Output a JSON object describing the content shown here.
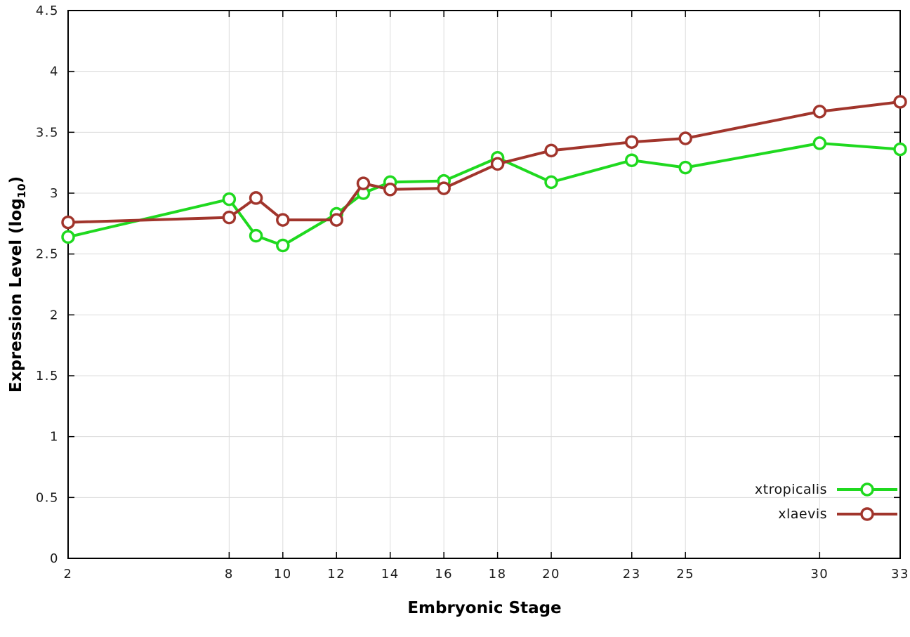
{
  "labels": {
    "xlabel": "Embryonic Stage",
    "ylabel_prefix": "Expression Level (log",
    "ylabel_sub": "10",
    "ylabel_suffix": ")"
  },
  "chart_data": {
    "type": "line",
    "x": [
      2,
      8,
      9,
      10,
      12,
      13,
      14,
      16,
      18,
      20,
      23,
      25,
      30,
      33
    ],
    "series": [
      {
        "name": "xtropicalis",
        "color": "#1fd91f",
        "values": [
          2.64,
          2.95,
          2.65,
          2.57,
          2.83,
          3.0,
          3.09,
          3.1,
          3.29,
          3.09,
          3.27,
          3.21,
          3.41,
          3.36
        ]
      },
      {
        "name": "xlaevis",
        "color": "#a1352c",
        "values": [
          2.76,
          2.8,
          2.96,
          2.78,
          2.78,
          3.08,
          3.03,
          3.04,
          3.24,
          3.35,
          3.42,
          3.45,
          3.67,
          3.75
        ]
      }
    ],
    "title": "",
    "xlabel": "Embryonic Stage",
    "ylabel": "Expression Level (log10)",
    "xlim": [
      2,
      33
    ],
    "ylim": [
      0,
      4.5
    ],
    "xticks": [
      {
        "v": 2,
        "label": "2"
      },
      {
        "v": 8,
        "label": "8"
      },
      {
        "v": 10,
        "label": "10"
      },
      {
        "v": 12,
        "label": "12"
      },
      {
        "v": 14,
        "label": "14"
      },
      {
        "v": 16,
        "label": "16"
      },
      {
        "v": 18,
        "label": "18"
      },
      {
        "v": 20,
        "label": "20"
      },
      {
        "v": 23,
        "label": "23"
      },
      {
        "v": 25,
        "label": "25"
      },
      {
        "v": 30,
        "label": "30"
      },
      {
        "v": 33,
        "label": "33"
      }
    ],
    "yticks": [
      {
        "v": 0,
        "label": "0"
      },
      {
        "v": 0.5,
        "label": "0.5"
      },
      {
        "v": 1,
        "label": "1"
      },
      {
        "v": 1.5,
        "label": "1.5"
      },
      {
        "v": 2,
        "label": "2"
      },
      {
        "v": 2.5,
        "label": "2.5"
      },
      {
        "v": 3,
        "label": "3"
      },
      {
        "v": 3.5,
        "label": "3.5"
      },
      {
        "v": 4,
        "label": "4"
      },
      {
        "v": 4.5,
        "label": "4.5"
      }
    ],
    "grid": true,
    "legend_position": "bottom-right"
  },
  "style": {
    "background": "#ffffff",
    "grid_color": "#dcdcdc",
    "border_color": "#000000",
    "marker_fill": "#ffffff"
  }
}
